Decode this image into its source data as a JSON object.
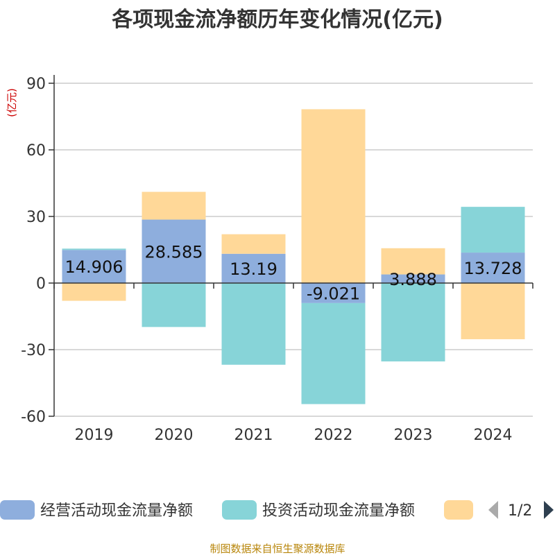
{
  "chart_data": {
    "type": "bar",
    "stacked": true,
    "title": "各项现金流净额历年变化情况(亿元)",
    "ylabel": "(亿元)",
    "xlabel": "",
    "categories": [
      "2019",
      "2020",
      "2021",
      "2022",
      "2023",
      "2024"
    ],
    "yticks": [
      90,
      60,
      30,
      0,
      -30,
      -60
    ],
    "ylim": [
      -60,
      90
    ],
    "grid": true,
    "series": [
      {
        "name": "经营活动现金流量净额",
        "color": "#8eaedd",
        "values": [
          14.906,
          28.585,
          13.19,
          -9.021,
          3.888,
          13.728
        ],
        "labels": [
          "14.906",
          "28.585",
          "13.19",
          "-9.021",
          "3.888",
          "13.728"
        ]
      },
      {
        "name": "投资活动现金流量净额",
        "color": "#87d4d8",
        "values": [
          0.6,
          -19.8,
          -36.8,
          -45.5,
          -35.3,
          20.6
        ]
      },
      {
        "name": "",
        "color": "#ffd898",
        "values": [
          -8.0,
          12.5,
          8.8,
          78.3,
          11.8,
          -25.3
        ]
      }
    ],
    "legend": {
      "position": "bottom",
      "page": "1/2"
    },
    "source": "制图数据来自恒生聚源数据库"
  }
}
